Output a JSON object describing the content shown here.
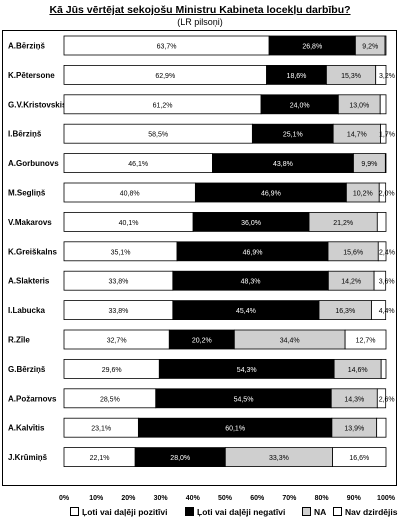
{
  "chart_data": {
    "type": "bar",
    "orientation": "horizontal",
    "stacked": "percent",
    "title": "Kā Jūs vērtējat sekojošu Ministru Kabineta locekļu darbību?",
    "subtitle": "(LR pilsoņi)",
    "categories": [
      "A.Bērziņš",
      "K.Pētersone",
      "G.V.Kristovskis",
      "I.Bērziņš",
      "A.Gorbunovs",
      "M.Segliņš",
      "V.Makarovs",
      "K.Greiškalns",
      "A.Slakteris",
      "I.Labucka",
      "R.Zīle",
      "G.Bērziņš",
      "A.Požarnovs",
      "A.Kalvītis",
      "J.Krūmiņš"
    ],
    "series": [
      {
        "name": "Ļoti vai daļēji pozitīvi",
        "values": [
          63.7,
          62.9,
          61.2,
          58.5,
          46.1,
          40.8,
          40.1,
          35.1,
          33.8,
          33.8,
          32.7,
          29.6,
          28.5,
          23.1,
          22.1
        ],
        "labels": [
          "63,7%",
          "62,9%",
          "61,2%",
          "58,5%",
          "46,1%",
          "40,8%",
          "40,1%",
          "35,1%",
          "33,8%",
          "33,8%",
          "32,7%",
          "29,6%",
          "28,5%",
          "23,1%",
          "22,1%"
        ]
      },
      {
        "name": "Ļoti vai daļēji negatīvi",
        "values": [
          26.8,
          18.6,
          24.0,
          25.1,
          43.8,
          46.9,
          36.0,
          46.9,
          48.3,
          45.4,
          20.2,
          54.3,
          54.5,
          60.1,
          28.0
        ],
        "labels": [
          "26,8%",
          "18,6%",
          "24,0%",
          "25,1%",
          "43,8%",
          "46,9%",
          "36,0%",
          "46,9%",
          "48,3%",
          "45,4%",
          "20,2%",
          "54,3%",
          "54,5%",
          "60,1%",
          "28,0%"
        ]
      },
      {
        "name": "NA",
        "values": [
          9.2,
          15.3,
          13.0,
          14.7,
          9.9,
          10.2,
          21.2,
          15.6,
          14.2,
          16.3,
          34.4,
          14.6,
          14.3,
          13.9,
          33.3
        ],
        "labels": [
          "9,2%",
          "15,3%",
          "13,0%",
          "14,7%",
          "9,9%",
          "10,2%",
          "21,2%",
          "15,6%",
          "14,2%",
          "16,3%",
          "34,4%",
          "14,6%",
          "14,3%",
          "13,9%",
          "33,3%"
        ]
      },
      {
        "name": "Nav dzirdējis",
        "values": [
          0.3,
          3.2,
          1.8,
          1.7,
          0.2,
          2.0,
          2.7,
          2.4,
          3.6,
          4.4,
          12.7,
          1.5,
          2.6,
          2.9,
          16.6
        ],
        "labels": [
          "",
          "3,2%",
          "",
          "1,7%",
          "",
          "2,0%",
          "",
          "2,4%",
          "3,6%",
          "4,4%",
          "12,7%",
          "",
          "2,6%",
          "",
          "16,6%"
        ]
      }
    ],
    "colors": [
      "#ffffff",
      "#000000",
      "#cfcfcf",
      "#ffffff"
    ],
    "xlim": [
      0,
      100
    ],
    "xticks": [
      "0%",
      "10%",
      "20%",
      "30%",
      "40%",
      "50%",
      "60%",
      "70%",
      "80%",
      "90%",
      "100%"
    ],
    "grid": false,
    "legend_position": "bottom"
  }
}
